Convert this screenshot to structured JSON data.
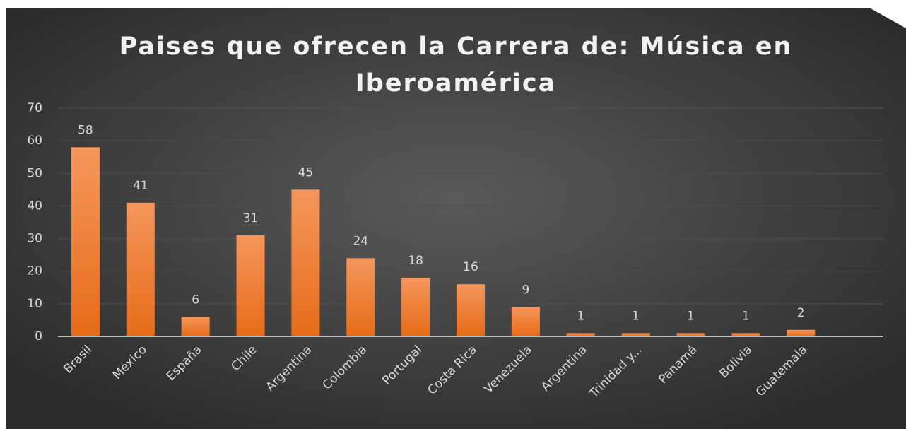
{
  "chart_data": {
    "type": "bar",
    "title": "Paises que ofrecen la Carrera de: Música en Iberoamérica",
    "categories": [
      "Brasil",
      "México",
      "España",
      "Chile",
      "Argentina",
      "Colombia",
      "Portugal",
      "Costa Rica",
      "Venezuela",
      "Argentina",
      "Trinidad y...",
      "Panamá",
      "Bolivia",
      "Guatemala",
      null
    ],
    "values": [
      58,
      41,
      6,
      31,
      45,
      24,
      18,
      16,
      9,
      1,
      1,
      1,
      1,
      2,
      null
    ],
    "color": "#ee7a30",
    "ylim": [
      0,
      70
    ],
    "yticks": [
      0,
      10,
      20,
      30,
      40,
      50,
      60,
      70
    ],
    "grid": true
  }
}
